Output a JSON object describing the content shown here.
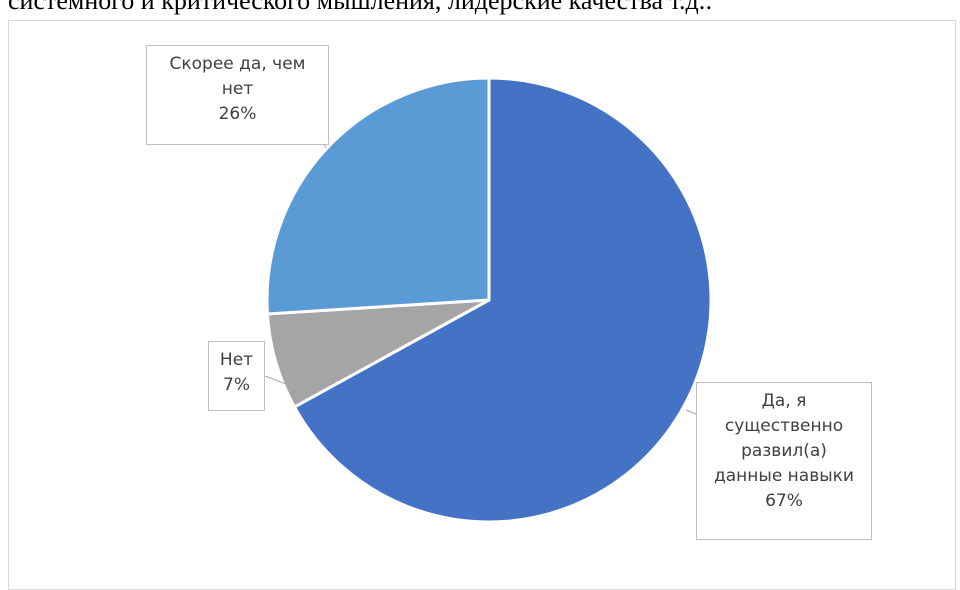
{
  "document": {
    "text_above": "системного и критического мышления, лидерские качества т.д.:"
  },
  "chart_data": {
    "type": "pie",
    "title": "",
    "start_angle_deg": 0,
    "direction": "clockwise",
    "slices": [
      {
        "label": "Да, я существенно развил(а) данные навыки",
        "value": 67,
        "display": "67%",
        "color": "#4472C4",
        "label_lines": [
          "Да, я",
          "существенно",
          "развил(а)",
          "данные навыки",
          "67%"
        ]
      },
      {
        "label": "Нет",
        "value": 7,
        "display": "7%",
        "color": "#A5A5A5",
        "label_lines": [
          "Нет",
          "7%"
        ]
      },
      {
        "label": "Скорее да, чем нет",
        "value": 26,
        "display": "26%",
        "color": "#5B9BD5",
        "label_lines": [
          "Скорее да, чем",
          "нет",
          "26%"
        ]
      }
    ],
    "legend": "none",
    "data_labels": "callouts"
  }
}
